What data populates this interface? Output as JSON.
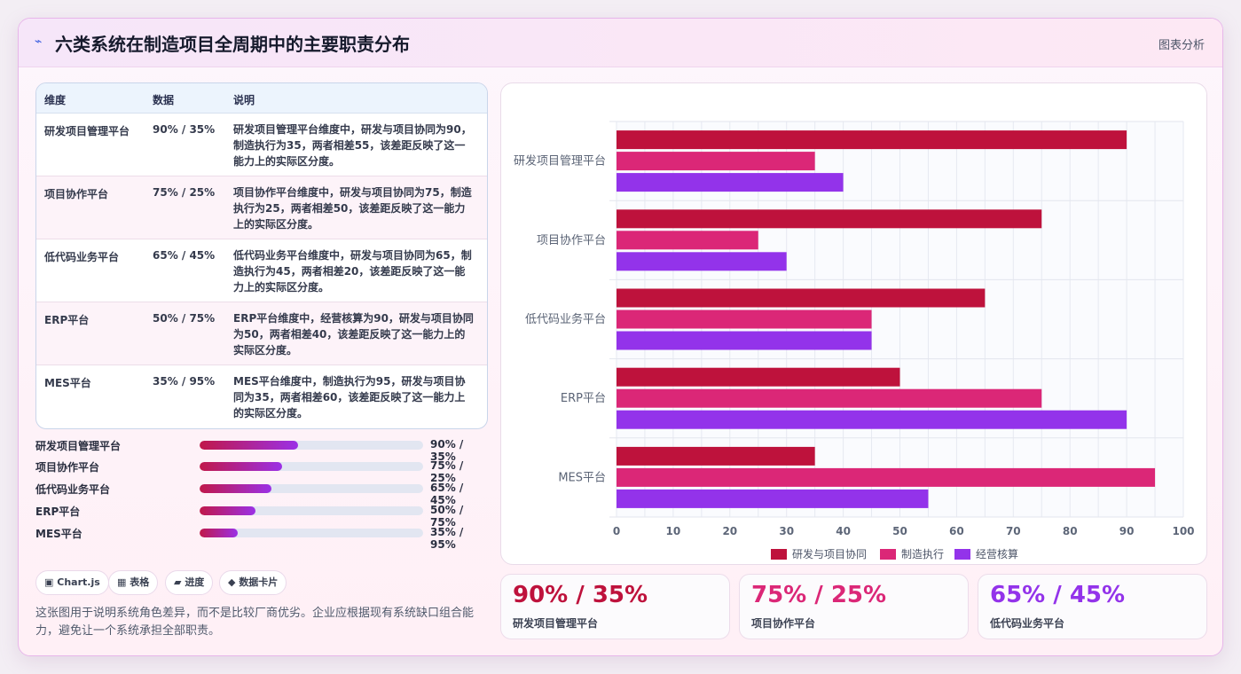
{
  "header": {
    "icon": "bolt-icon",
    "title": "六类系统在制造项目全周期中的主要职责分布",
    "tag": "图表分析"
  },
  "table": {
    "headers": [
      "维度",
      "数据",
      "说明"
    ],
    "rows": [
      {
        "name": "研发项目管理平台",
        "data": "90% / 35%",
        "desc": "研发项目管理平台维度中，研发与项目协同为90，制造执行为35，两者相差55，该差距反映了这一能力上的实际区分度。"
      },
      {
        "name": "项目协作平台",
        "data": "75% / 25%",
        "desc": "项目协作平台维度中，研发与项目协同为75，制造执行为25，两者相差50，该差距反映了这一能力上的实际区分度。"
      },
      {
        "name": "低代码业务平台",
        "data": "65% / 45%",
        "desc": "低代码业务平台维度中，研发与项目协同为65，制造执行为45，两者相差20，该差距反映了这一能力上的实际区分度。"
      },
      {
        "name": "ERP平台",
        "data": "50% / 75%",
        "desc": "ERP平台维度中，经营核算为90，研发与项目协同为50，两者相差40，该差距反映了这一能力上的实际区分度。"
      },
      {
        "name": "MES平台",
        "data": "35% / 95%",
        "desc": "MES平台维度中，制造执行为95，研发与项目协同为35，两者相差60，该差距反映了这一能力上的实际区分度。"
      }
    ]
  },
  "progress": [
    {
      "label": "研发项目管理平台",
      "value_text": "90% / 35%",
      "fill": 0.44
    },
    {
      "label": "项目协作平台",
      "value_text": "75% / 25%",
      "fill": 0.37
    },
    {
      "label": "低代码业务平台",
      "value_text": "65% / 45%",
      "fill": 0.32
    },
    {
      "label": "ERP平台",
      "value_text": "50% / 75%",
      "fill": 0.25
    },
    {
      "label": "MES平台",
      "value_text": "35% / 95%",
      "fill": 0.17
    }
  ],
  "chips": [
    {
      "icon": "chart-icon",
      "glyph": "▣",
      "label": "Chart.js"
    },
    {
      "icon": "table-icon",
      "glyph": "▦",
      "label": "表格"
    },
    {
      "icon": "progress-icon",
      "glyph": "▰",
      "label": "进度"
    },
    {
      "icon": "card-icon",
      "glyph": "◆",
      "label": "数据卡片"
    }
  ],
  "note": "这张图用于说明系统角色差异，而不是比较厂商优劣。企业应根据现有系统缺口组合能力，避免让一个系统承担全部职责。",
  "kpis": [
    {
      "value": "90% / 35%",
      "label": "研发项目管理平台",
      "color": "#be123c"
    },
    {
      "value": "75% / 25%",
      "label": "项目协作平台",
      "color": "#db2777"
    },
    {
      "value": "65% / 45%",
      "label": "低代码业务平台",
      "color": "#9333ea"
    }
  ],
  "chart_data": {
    "type": "bar",
    "orientation": "horizontal",
    "categories": [
      "研发项目管理平台",
      "项目协作平台",
      "低代码业务平台",
      "ERP平台",
      "MES平台"
    ],
    "series": [
      {
        "name": "研发与项目协同",
        "color": "#be123c",
        "values": [
          90,
          75,
          65,
          50,
          35
        ]
      },
      {
        "name": "制造执行",
        "color": "#db2777",
        "values": [
          35,
          25,
          45,
          75,
          95
        ]
      },
      {
        "name": "经营核算",
        "color": "#9333ea",
        "values": [
          40,
          30,
          45,
          90,
          55
        ]
      }
    ],
    "xlim": [
      0,
      100
    ],
    "xticks": [
      0,
      10,
      20,
      30,
      40,
      50,
      60,
      70,
      80,
      90,
      100
    ],
    "grid": true,
    "legend": "bottom"
  }
}
